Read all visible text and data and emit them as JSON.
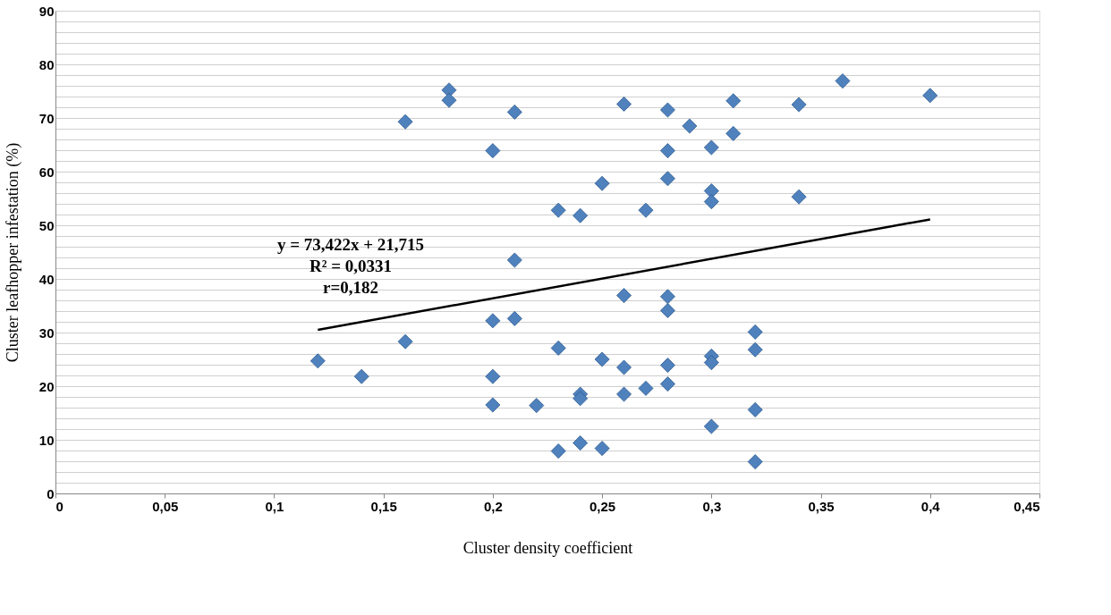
{
  "chart_data": {
    "type": "scatter",
    "xlabel": "Cluster density coefficient",
    "ylabel": "Cluster leafhopper infestation (%)",
    "annotations": [
      "y = 73,422x + 21,715",
      "R² = 0,0331",
      "r=0,182"
    ],
    "x": [
      0.12,
      0.14,
      0.16,
      0.16,
      0.18,
      0.18,
      0.2,
      0.2,
      0.2,
      0.2,
      0.21,
      0.21,
      0.21,
      0.22,
      0.23,
      0.23,
      0.23,
      0.24,
      0.24,
      0.24,
      0.24,
      0.25,
      0.25,
      0.25,
      0.26,
      0.26,
      0.26,
      0.26,
      0.27,
      0.27,
      0.28,
      0.28,
      0.28,
      0.28,
      0.28,
      0.28,
      0.28,
      0.29,
      0.3,
      0.3,
      0.3,
      0.3,
      0.3,
      0.3,
      0.31,
      0.31,
      0.32,
      0.32,
      0.32,
      0.32,
      0.34,
      0.34,
      0.36,
      0.4
    ],
    "series": [
      {
        "color": "#4f81bd",
        "marker": "diamond",
        "values": [
          24.7,
          21.8,
          69.3,
          28.3,
          75.2,
          73.3,
          63.9,
          32.2,
          21.8,
          16.5,
          71.1,
          43.5,
          32.6,
          16.4,
          52.8,
          27.1,
          7.9,
          51.8,
          18.5,
          17.7,
          9.4,
          57.8,
          25.0,
          8.4,
          72.6,
          36.9,
          23.5,
          18.5,
          52.8,
          19.6,
          71.5,
          63.9,
          58.7,
          36.7,
          34.1,
          23.9,
          20.4,
          68.5,
          64.5,
          56.4,
          54.4,
          25.6,
          24.4,
          12.5,
          73.2,
          67.1,
          30.1,
          26.8,
          15.6,
          5.9,
          72.5,
          55.3,
          76.9,
          74.2
        ]
      },
      {
        "type": "line",
        "color": "#000000",
        "x": [
          0.12,
          0.4
        ],
        "values": [
          30.5,
          51.1
        ],
        "line_style": "solid",
        "marker": "none"
      }
    ],
    "xlim": [
      0,
      0.45
    ],
    "xticks": [
      0,
      {
        "value": 0.05,
        "label": "0,05"
      },
      {
        "value": 0.1,
        "label": "0,1"
      },
      {
        "value": 0.15,
        "label": "0,15"
      },
      {
        "value": 0.2,
        "label": "0,2"
      },
      {
        "value": 0.25,
        "label": "0,25"
      },
      {
        "value": 0.3,
        "label": "0,3"
      },
      {
        "value": 0.35,
        "label": "0,35"
      },
      {
        "value": 0.4,
        "label": "0,4"
      },
      {
        "value": 0.45,
        "label": "0,45"
      }
    ],
    "ylim": [
      0,
      90
    ],
    "yticks": [
      0,
      {
        "value": 2,
        "label": null
      },
      {
        "value": 4,
        "label": null
      },
      {
        "value": 6,
        "label": null
      },
      {
        "value": 8,
        "label": null
      },
      10,
      {
        "value": 12,
        "label": null
      },
      {
        "value": 14,
        "label": null
      },
      {
        "value": 16,
        "label": null
      },
      {
        "value": 18,
        "label": null
      },
      20,
      {
        "value": 22,
        "label": null
      },
      {
        "value": 24,
        "label": null
      },
      {
        "value": 26,
        "label": null
      },
      {
        "value": 28,
        "label": null
      },
      30,
      {
        "value": 32,
        "label": null
      },
      {
        "value": 34,
        "label": null
      },
      {
        "value": 36,
        "label": null
      },
      {
        "value": 38,
        "label": null
      },
      40,
      {
        "value": 42,
        "label": null
      },
      {
        "value": 44,
        "label": null
      },
      {
        "value": 46,
        "label": null
      },
      {
        "value": 48,
        "label": null
      },
      50,
      {
        "value": 52,
        "label": null
      },
      {
        "value": 54,
        "label": null
      },
      {
        "value": 56,
        "label": null
      },
      {
        "value": 58,
        "label": null
      },
      60,
      {
        "value": 62,
        "label": null
      },
      {
        "value": 64,
        "label": null
      },
      {
        "value": 66,
        "label": null
      },
      {
        "value": 68,
        "label": null
      },
      70,
      {
        "value": 72,
        "label": null
      },
      {
        "value": 74,
        "label": null
      },
      {
        "value": 76,
        "label": null
      },
      {
        "value": 78,
        "label": null
      },
      80,
      {
        "value": 82,
        "label": null
      },
      {
        "value": 84,
        "label": null
      },
      {
        "value": 86,
        "label": null
      },
      {
        "value": 88,
        "label": null
      },
      90
    ],
    "grid": "y"
  }
}
